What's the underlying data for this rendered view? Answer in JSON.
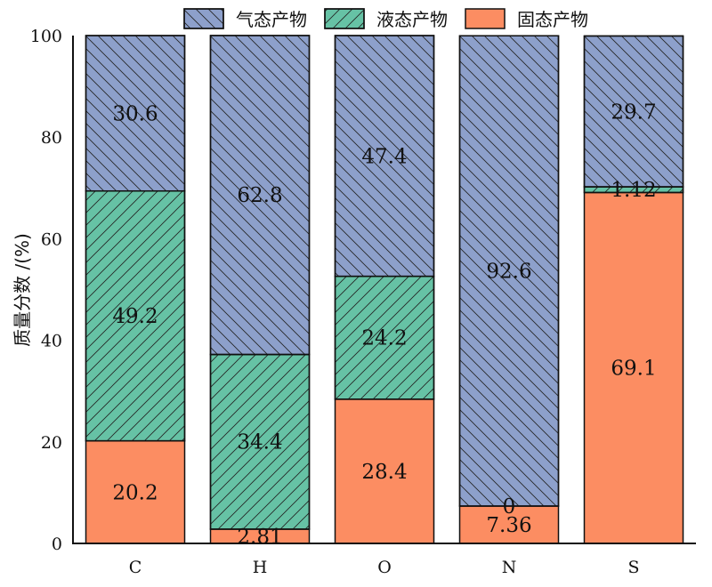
{
  "chart_data": {
    "type": "bar",
    "stacked": true,
    "categories": [
      "C",
      "H",
      "O",
      "N",
      "S"
    ],
    "series": [
      {
        "name": "固态产物",
        "values": [
          20.2,
          2.81,
          28.4,
          7.36,
          69.1
        ],
        "labels": [
          "20.2",
          "2.81",
          "28.4",
          "7.36",
          "69.1"
        ],
        "color": "#fc8d62",
        "hatch": "none"
      },
      {
        "name": "液态产物",
        "values": [
          49.2,
          34.4,
          24.2,
          0,
          1.12
        ],
        "labels": [
          "49.2",
          "34.4",
          "24.2",
          "0",
          "1.12"
        ],
        "color": "#66c2a5",
        "hatch": "forward-diagonal"
      },
      {
        "name": "气态产物",
        "values": [
          30.6,
          62.8,
          47.4,
          92.6,
          29.7
        ],
        "labels": [
          "30.6",
          "62.8",
          "47.4",
          "92.6",
          "29.7"
        ],
        "color": "#8da0cb",
        "hatch": "back-diagonal"
      }
    ],
    "legend_order": [
      "气态产物",
      "液态产物",
      "固态产物"
    ],
    "legend_position": "top",
    "xlabel": "",
    "ylabel": "质量分数 /(%)",
    "ylim": [
      0,
      100
    ],
    "yticks": [
      "0",
      "20",
      "40",
      "60",
      "80",
      "100"
    ],
    "grid": false
  }
}
